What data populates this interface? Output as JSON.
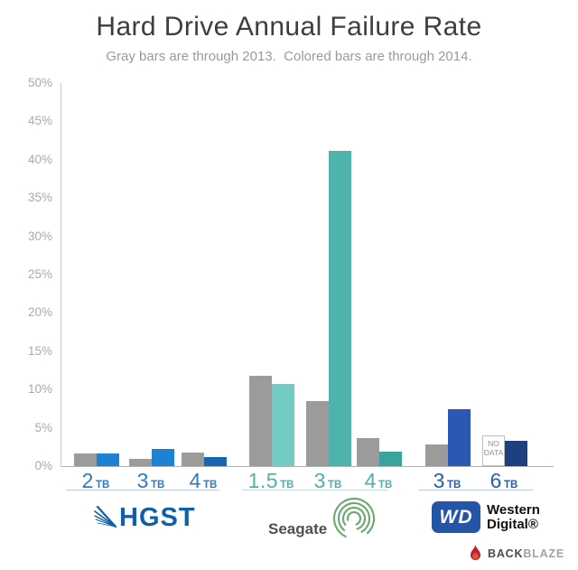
{
  "chart_data": {
    "type": "bar",
    "title": "Hard Drive Annual Failure Rate",
    "subtitle": "Gray bars are through 2013.  Colored bars are through 2014.",
    "ylim": [
      0,
      50
    ],
    "ytick_step": 5,
    "ytick_labels": [
      "0%",
      "5%",
      "10%",
      "15%",
      "20%",
      "25%",
      "30%",
      "35%",
      "40%",
      "45%",
      "50%"
    ],
    "grid": false,
    "legend": "described in subtitle",
    "series_meta": {
      "gray_series_label": "through 2013",
      "colored_series_label": "through 2014",
      "gray_color": "#9b9b9b"
    },
    "groups": [
      {
        "brand": "HGST",
        "label_color": "#3279bd",
        "underline_color": "#b7cce3",
        "drives": [
          {
            "size": "2",
            "unit": "TB",
            "v2013": 1.6,
            "v2014": 1.7,
            "color2014": "#1d82d4"
          },
          {
            "size": "3",
            "unit": "TB",
            "v2013": 1.0,
            "v2014": 2.2,
            "color2014": "#1d82d4"
          },
          {
            "size": "4",
            "unit": "TB",
            "v2013": 1.8,
            "v2014": 1.2,
            "color2014": "#1766b0"
          }
        ]
      },
      {
        "brand": "Seagate",
        "label_color": "#56aea6",
        "underline_color": "#c3dcda",
        "drives": [
          {
            "size": "1.5",
            "unit": "TB",
            "v2013": 11.8,
            "v2014": 10.7,
            "color2014": "#72ccc6"
          },
          {
            "size": "3",
            "unit": "TB",
            "v2013": 8.5,
            "v2014": 41.2,
            "color2014": "#4fb3ac"
          },
          {
            "size": "4",
            "unit": "TB",
            "v2013": 3.7,
            "v2014": 1.9,
            "color2014": "#3aa39b"
          }
        ]
      },
      {
        "brand": "Western Digital",
        "label_color": "#2d5ca9",
        "underline_color": "#b7cce3",
        "drives": [
          {
            "size": "3",
            "unit": "TB",
            "v2013": 2.8,
            "v2014": 7.4,
            "color2014": "#2a58b2"
          },
          {
            "size": "6",
            "unit": "TB",
            "v2013": null,
            "no_data_label": "NO DATA",
            "v2014": 3.3,
            "color2014": "#1e3f80"
          }
        ]
      }
    ]
  },
  "footer": {
    "hgst": {
      "text": "HGST"
    },
    "seagate": {
      "text": "Seagate"
    },
    "western_digital": {
      "badge": "WD",
      "line1": "Western",
      "line2": "Digital®"
    },
    "backblaze": {
      "back": "BACK",
      "blaze": "BLAZE"
    }
  }
}
